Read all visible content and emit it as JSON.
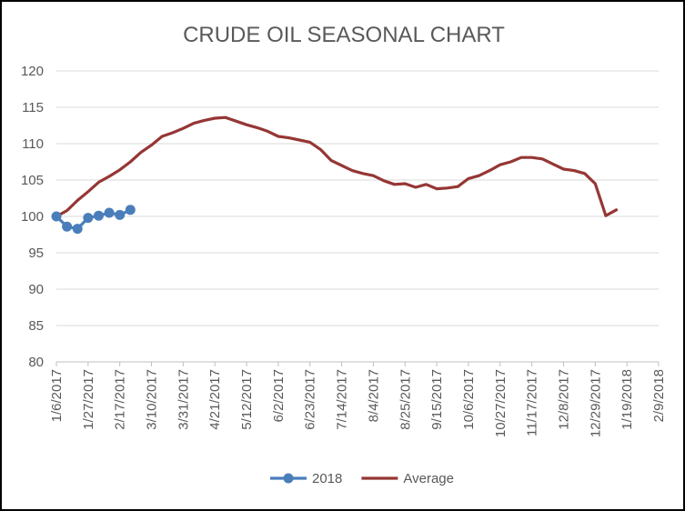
{
  "chart_data": {
    "type": "line",
    "title": "CRUDE OIL SEASONAL CHART",
    "xlabel": "",
    "ylabel": "",
    "ylim": [
      80,
      120
    ],
    "yticks": [
      80,
      85,
      90,
      95,
      100,
      105,
      110,
      115,
      120
    ],
    "x_tick_labels": [
      "1/6/2017",
      "1/27/2017",
      "2/17/2017",
      "3/10/2017",
      "3/31/2017",
      "4/21/2017",
      "5/12/2017",
      "6/2/2017",
      "6/23/2017",
      "7/14/2017",
      "8/4/2017",
      "8/25/2017",
      "9/15/2017",
      "10/6/2017",
      "10/27/2017",
      "11/17/2017",
      "12/8/2017",
      "12/29/2017",
      "1/19/2018",
      "2/9/2018"
    ],
    "xlim": [
      "2017-01-06",
      "2018-02-09"
    ],
    "grid": true,
    "legend_position": "bottom",
    "series": [
      {
        "name": "2018",
        "color": "#4a7ebb",
        "marker": "circle",
        "points": [
          [
            "2017-01-06",
            100.0
          ],
          [
            "2017-01-13",
            98.6
          ],
          [
            "2017-01-20",
            98.3
          ],
          [
            "2017-01-27",
            99.8
          ],
          [
            "2017-02-03",
            100.1
          ],
          [
            "2017-02-10",
            100.5
          ],
          [
            "2017-02-17",
            100.2
          ],
          [
            "2017-02-24",
            100.9
          ]
        ]
      },
      {
        "name": "Average",
        "color": "#953735",
        "marker": "none",
        "points": [
          [
            "2017-01-06",
            100.0
          ],
          [
            "2017-01-13",
            100.8
          ],
          [
            "2017-01-20",
            102.2
          ],
          [
            "2017-01-27",
            103.4
          ],
          [
            "2017-02-03",
            104.7
          ],
          [
            "2017-02-10",
            105.5
          ],
          [
            "2017-02-17",
            106.4
          ],
          [
            "2017-02-24",
            107.5
          ],
          [
            "2017-03-03",
            108.8
          ],
          [
            "2017-03-10",
            109.8
          ],
          [
            "2017-03-17",
            111.0
          ],
          [
            "2017-03-24",
            111.5
          ],
          [
            "2017-03-31",
            112.1
          ],
          [
            "2017-04-07",
            112.8
          ],
          [
            "2017-04-14",
            113.2
          ],
          [
            "2017-04-21",
            113.5
          ],
          [
            "2017-04-28",
            113.6
          ],
          [
            "2017-05-05",
            113.1
          ],
          [
            "2017-05-12",
            112.6
          ],
          [
            "2017-05-19",
            112.2
          ],
          [
            "2017-05-26",
            111.7
          ],
          [
            "2017-06-02",
            111.0
          ],
          [
            "2017-06-09",
            110.8
          ],
          [
            "2017-06-16",
            110.5
          ],
          [
            "2017-06-23",
            110.2
          ],
          [
            "2017-06-30",
            109.2
          ],
          [
            "2017-07-07",
            107.7
          ],
          [
            "2017-07-14",
            107.0
          ],
          [
            "2017-07-21",
            106.3
          ],
          [
            "2017-07-28",
            105.9
          ],
          [
            "2017-08-04",
            105.6
          ],
          [
            "2017-08-11",
            104.9
          ],
          [
            "2017-08-18",
            104.4
          ],
          [
            "2017-08-25",
            104.5
          ],
          [
            "2017-09-01",
            104.0
          ],
          [
            "2017-09-08",
            104.4
          ],
          [
            "2017-09-15",
            103.8
          ],
          [
            "2017-09-22",
            103.9
          ],
          [
            "2017-09-29",
            104.1
          ],
          [
            "2017-10-06",
            105.2
          ],
          [
            "2017-10-13",
            105.6
          ],
          [
            "2017-10-20",
            106.3
          ],
          [
            "2017-10-27",
            107.1
          ],
          [
            "2017-11-03",
            107.5
          ],
          [
            "2017-11-10",
            108.1
          ],
          [
            "2017-11-17",
            108.1
          ],
          [
            "2017-11-24",
            107.9
          ],
          [
            "2017-12-01",
            107.2
          ],
          [
            "2017-12-08",
            106.5
          ],
          [
            "2017-12-15",
            106.3
          ],
          [
            "2017-12-22",
            105.9
          ],
          [
            "2017-12-29",
            104.5
          ],
          [
            "2018-01-05",
            100.1
          ],
          [
            "2018-01-12",
            100.9
          ]
        ]
      }
    ]
  }
}
